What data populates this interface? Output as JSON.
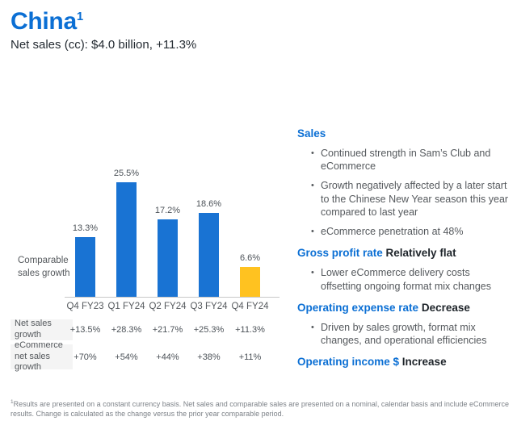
{
  "header": {
    "title": "China",
    "title_superscript": "1",
    "subtitle": "Net sales (cc): $4.0 billion, +11.3%"
  },
  "chart_data": {
    "type": "bar",
    "title": "",
    "axis_label": "Comparable sales growth",
    "categories": [
      "Q4 FY23",
      "Q1 FY24",
      "Q2 FY24",
      "Q3 FY24",
      "Q4 FY24"
    ],
    "values": [
      13.3,
      25.5,
      17.2,
      18.6,
      6.6
    ],
    "value_labels": [
      "13.3%",
      "25.5%",
      "17.2%",
      "18.6%",
      "6.6%"
    ],
    "bar_colors": [
      "#1973d3",
      "#1973d3",
      "#1973d3",
      "#1973d3",
      "#ffc220"
    ],
    "ylim": [
      0,
      28
    ],
    "grid": false,
    "legend": "none"
  },
  "table": {
    "rows": [
      {
        "label": "Net sales growth",
        "values": [
          "+13.5%",
          "+28.3%",
          "+21.7%",
          "+25.3%",
          "+11.3%"
        ]
      },
      {
        "label": "eCommerce net sales growth",
        "values": [
          "+70%",
          "+54%",
          "+44%",
          "+38%",
          "+11%"
        ]
      }
    ]
  },
  "highlights": {
    "sections": [
      {
        "heading": "Sales",
        "suffix": "",
        "bullets": [
          "Continued strength in Sam’s Club and eCommerce",
          "Growth negatively affected by a later start to the Chinese New Year season this year compared to last year",
          "eCommerce penetration at 48%"
        ]
      },
      {
        "heading": "Gross profit rate",
        "suffix": "Relatively flat",
        "bullets": [
          "Lower eCommerce delivery costs offsetting ongoing format mix changes"
        ]
      },
      {
        "heading": "Operating expense rate",
        "suffix": "Decrease",
        "bullets": [
          "Driven by sales growth, format mix changes, and operational efficiencies"
        ]
      },
      {
        "heading": "Operating income $",
        "suffix": "Increase",
        "bullets": []
      }
    ]
  },
  "footnote": {
    "superscript": "1",
    "text": "Results are presented on a constant currency basis. Net sales and comparable sales are presented on a nominal, calendar basis and include eCommerce results. Change is calculated as the change versus the prior year comparable period."
  },
  "colors": {
    "brand_blue": "#0b6fd4",
    "bar_blue": "#1973d3",
    "bar_yellow": "#ffc220",
    "text_dark": "#242b32",
    "text_gray": "#55595d",
    "table_label_bg": "#f4f4f4",
    "axis_line": "#c7c7c7"
  }
}
